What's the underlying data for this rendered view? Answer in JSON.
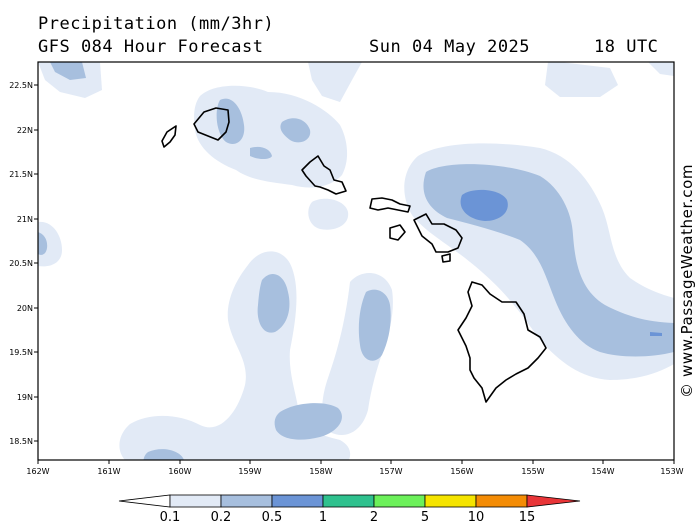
{
  "header": {
    "title": "Precipitation (mm/3hr)",
    "subtitle": "GFS 084 Hour Forecast",
    "date": "Sun 04 May 2025",
    "time": "18 UTC"
  },
  "watermark": "© www.PassageWeather.com",
  "axes": {
    "lat_ticks": [
      "22.5N",
      "22N",
      "21.5N",
      "21N",
      "20.5N",
      "20N",
      "19.5N",
      "19N",
      "18.5N"
    ],
    "lon_ticks": [
      "162W",
      "161W",
      "160W",
      "159W",
      "158W",
      "157W",
      "156W",
      "155W",
      "154W",
      "153W"
    ]
  },
  "colorbar": {
    "labels": [
      "0.1",
      "0.2",
      "0.5",
      "1",
      "2",
      "5",
      "10",
      "15"
    ],
    "colors": [
      "#ffffff",
      "#e2eaf6",
      "#a7bfde",
      "#6b94d6",
      "#2fc18e",
      "#6cf05a",
      "#f5e400",
      "#f48c05",
      "#e83538"
    ]
  },
  "legend_colors": {
    "light": "#e2eaf6",
    "medium": "#a7bfde",
    "dark": "#6b94d6",
    "land_outline": "#000000"
  }
}
